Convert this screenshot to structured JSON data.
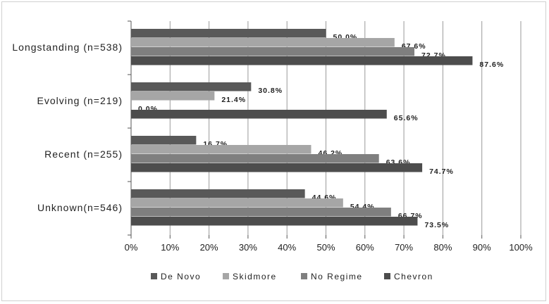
{
  "chart_data": {
    "type": "bar",
    "orientation": "horizontal",
    "categories": [
      "Longstanding (n=538)",
      "Evolving (n=219)",
      "Recent (n=255)",
      "Unknown(n=546)"
    ],
    "series": [
      {
        "name": "De Novo",
        "color": "#595959",
        "values": [
          50.0,
          30.8,
          16.7,
          44.6
        ],
        "labels": [
          "50.0%",
          "30.8%",
          "16.7%",
          "44.6%"
        ]
      },
      {
        "name": "Skidmore",
        "color": "#a6a6a6",
        "values": [
          67.6,
          21.4,
          46.2,
          54.4
        ],
        "labels": [
          "67.6%",
          "21.4%",
          "46.2%",
          "54.4%"
        ]
      },
      {
        "name": "No Regime",
        "color": "#7f7f7f",
        "values": [
          72.7,
          0.0,
          63.6,
          66.7
        ],
        "labels": [
          "72.7%",
          "0.0%",
          "63.6%",
          "66.7%"
        ]
      },
      {
        "name": "Chevron",
        "color": "#4d4d4d",
        "values": [
          87.6,
          65.6,
          74.7,
          73.5
        ],
        "labels": [
          "87.6%",
          "65.6%",
          "74.7%",
          "73.5%"
        ]
      }
    ],
    "xlim": [
      0,
      100
    ],
    "xticks": [
      0,
      10,
      20,
      30,
      40,
      50,
      60,
      70,
      80,
      90,
      100
    ],
    "xtick_labels": [
      "0%",
      "10%",
      "20%",
      "30%",
      "40%",
      "50%",
      "60%",
      "70%",
      "80%",
      "90%",
      "100%"
    ],
    "grid": "vertical",
    "legend_position": "bottom"
  }
}
